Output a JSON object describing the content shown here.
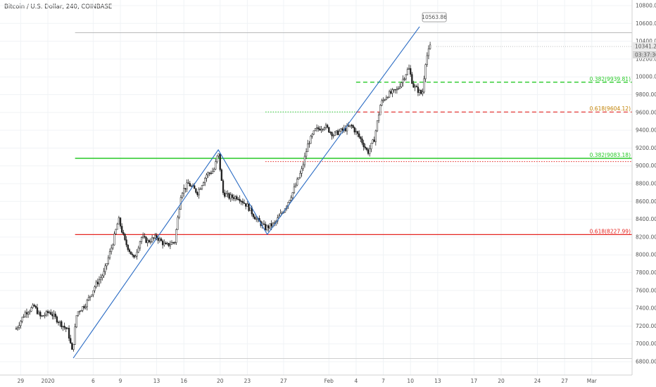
{
  "header": {
    "title": "Bitcoin / U.S. Dollar, 240, COINBASE"
  },
  "chart_data": {
    "type": "candlestick",
    "title": "Bitcoin / U.S. Dollar, 240, COINBASE",
    "y_ticks": [
      "10800.00",
      "10600.00",
      "10400.00",
      "10200.00",
      "10000.00",
      "9800.00",
      "9600.00",
      "9400.00",
      "9200.00",
      "9000.00",
      "8800.00",
      "8600.00",
      "8400.00",
      "8200.00",
      "8000.00",
      "7800.00",
      "7600.00",
      "7400.00",
      "7200.00",
      "7000.00",
      "6800.00"
    ],
    "ylim": [
      6760,
      10860
    ],
    "x_ticks": [
      "29",
      "2020",
      "6",
      "9",
      "13",
      "16",
      "20",
      "23",
      "27",
      "Feb",
      "4",
      "7",
      "10",
      "13",
      "17",
      "20",
      "24",
      "27",
      "Mar"
    ],
    "price_badges": {
      "last_price": "10341.24",
      "countdown": "03:37:36"
    },
    "callout": {
      "value": "10563.86"
    },
    "price_path": [
      {
        "day": -3.5,
        "price": 7170
      },
      {
        "day": -2.5,
        "price": 7350
      },
      {
        "day": -1.5,
        "price": 7420
      },
      {
        "day": -0.8,
        "price": 7300
      },
      {
        "day": 0.2,
        "price": 7360
      },
      {
        "day": 1.2,
        "price": 7250
      },
      {
        "day": 2.2,
        "price": 7150
      },
      {
        "day": 2.7,
        "price": 6900
      },
      {
        "day": 3.2,
        "price": 7350
      },
      {
        "day": 4.2,
        "price": 7450
      },
      {
        "day": 5.2,
        "price": 7650
      },
      {
        "day": 6.2,
        "price": 7800
      },
      {
        "day": 7.2,
        "price": 8150
      },
      {
        "day": 7.8,
        "price": 8400
      },
      {
        "day": 8.5,
        "price": 8150
      },
      {
        "day": 9.5,
        "price": 7950
      },
      {
        "day": 10.3,
        "price": 8200
      },
      {
        "day": 11.0,
        "price": 8150
      },
      {
        "day": 12.0,
        "price": 8200
      },
      {
        "day": 13.0,
        "price": 8100
      },
      {
        "day": 14.0,
        "price": 8150
      },
      {
        "day": 14.7,
        "price": 8700
      },
      {
        "day": 15.5,
        "price": 8800
      },
      {
        "day": 16.5,
        "price": 8700
      },
      {
        "day": 17.5,
        "price": 8900
      },
      {
        "day": 18.3,
        "price": 8950
      },
      {
        "day": 18.8,
        "price": 9150
      },
      {
        "day": 19.3,
        "price": 8700
      },
      {
        "day": 20.0,
        "price": 8650
      },
      {
        "day": 21.0,
        "price": 8650
      },
      {
        "day": 22.0,
        "price": 8550
      },
      {
        "day": 23.0,
        "price": 8400
      },
      {
        "day": 24.0,
        "price": 8300
      },
      {
        "day": 25.0,
        "price": 8350
      },
      {
        "day": 26.0,
        "price": 8500
      },
      {
        "day": 27.0,
        "price": 8700
      },
      {
        "day": 28.0,
        "price": 8950
      },
      {
        "day": 28.7,
        "price": 9250
      },
      {
        "day": 29.5,
        "price": 9400
      },
      {
        "day": 30.5,
        "price": 9450
      },
      {
        "day": 31.5,
        "price": 9350
      },
      {
        "day": 32.5,
        "price": 9400
      },
      {
        "day": 33.5,
        "price": 9450
      },
      {
        "day": 34.5,
        "price": 9300
      },
      {
        "day": 35.3,
        "price": 9150
      },
      {
        "day": 36.0,
        "price": 9300
      },
      {
        "day": 36.7,
        "price": 9700
      },
      {
        "day": 37.5,
        "price": 9800
      },
      {
        "day": 38.5,
        "price": 9850
      },
      {
        "day": 39.3,
        "price": 10000
      },
      {
        "day": 39.8,
        "price": 10100
      },
      {
        "day": 40.3,
        "price": 9900
      },
      {
        "day": 40.8,
        "price": 9850
      },
      {
        "day": 41.3,
        "price": 9800
      },
      {
        "day": 41.7,
        "price": 10200
      },
      {
        "day": 42.2,
        "price": 10350
      }
    ],
    "lines": [
      {
        "kind": "h-solid",
        "price": 9085,
        "color": "#26c926",
        "width": 1.5,
        "x0_day": 3.0,
        "x1_day": 76
      },
      {
        "kind": "h-solid",
        "price": 8228,
        "color": "#e52521",
        "width": 1.3,
        "x0_day": 3.0,
        "x1_day": 76
      },
      {
        "kind": "h-solid",
        "price": 10495,
        "color": "#b0b0b0",
        "width": 0.8,
        "x0_day": 3.0,
        "x1_day": 76
      },
      {
        "kind": "h-solid",
        "price": 6835,
        "color": "#c8c8c8",
        "width": 0.8,
        "x0_day": 3.0,
        "x1_day": 76
      },
      {
        "kind": "h-dashed",
        "price": 9940,
        "color": "#26c926",
        "width": 1.4,
        "x0_day": 34.0,
        "x1_day": 76
      },
      {
        "kind": "h-dashed",
        "price": 9605,
        "color": "#e52521",
        "width": 1.2,
        "x0_day": 34.0,
        "x1_day": 76
      },
      {
        "kind": "h-dotted",
        "price": 9605,
        "color": "#26c926",
        "width": 1.0,
        "x0_day": 24.0,
        "x1_day": 34.0
      },
      {
        "kind": "h-dotted",
        "price": 9048,
        "color": "#e52521",
        "width": 0.9,
        "x0_day": 24.0,
        "x1_day": 76
      }
    ],
    "level_labels": [
      {
        "text": "0.382(9939.81)",
        "price": 9940,
        "color": "#26c926"
      },
      {
        "text": "0.618(9604.12)",
        "price": 9605,
        "color": "#c08000"
      },
      {
        "text": "0.382(9083.18)",
        "price": 9085,
        "color": "#26c926"
      },
      {
        "text": "0.618(8227.99)",
        "price": 8228,
        "color": "#e52521"
      }
    ],
    "zigzag": [
      {
        "day": 2.8,
        "price": 6840
      },
      {
        "day": 18.8,
        "price": 9180
      },
      {
        "day": 24.2,
        "price": 8230
      },
      {
        "day": 41.0,
        "price": 10563
      }
    ],
    "zigzag_color": "#2b6cc4"
  }
}
